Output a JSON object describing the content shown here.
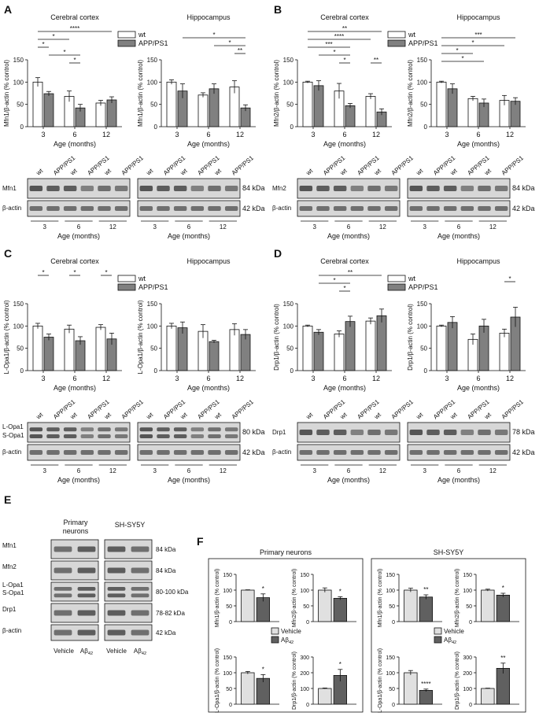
{
  "colors": {
    "wt": "#ffffff",
    "app": "#808080",
    "vehicle": "#e0e0e0",
    "abeta": "#606060",
    "blot_bg": "#d7d7d7",
    "band": "#2a2a2a"
  },
  "common": {
    "xlabel_age": "Age (months)",
    "ages": [
      "3",
      "6",
      "12"
    ],
    "legend_wt": "wt",
    "legend_app": "APP/PS1",
    "legend_vehicle": "Vehicle",
    "legend_abeta": "Aβ42",
    "lane_labels": [
      "wt",
      "APP/PS1",
      "wt",
      "APP/PS1",
      "wt",
      "APP/PS1"
    ],
    "actin": "β-actin",
    "kda_42": "42 kDa"
  },
  "panels": {
    "A": {
      "letter": "A",
      "protein": "Mfn1",
      "kda": "84 kDa"
    },
    "B": {
      "letter": "B",
      "protein": "Mfn2",
      "kda": "84 kDa"
    },
    "C": {
      "letter": "C",
      "protein_top": "L-Opa1",
      "protein_bot": "S-Opa1",
      "kda": "80 kDa"
    },
    "D": {
      "letter": "D",
      "protein": "Drp1",
      "kda": "78 kDa"
    },
    "E": {
      "letter": "E",
      "header_primary": "Primary neurons",
      "header_shsy": "SH-SY5Y",
      "rows": [
        "Mfn1",
        "Mfn2",
        "L-Opa1\nS-Opa1",
        "Drp1",
        "β-actin"
      ],
      "kdas": [
        "84 kDa",
        "84 kDa",
        "80-100 kDa",
        "78-82 kDa",
        "42 kDa"
      ],
      "lanes": [
        "Vehicle",
        "Aβ42",
        "Vehicle",
        "Aβ42"
      ]
    },
    "F": {
      "letter": "F",
      "header_primary": "Primary neurons",
      "header_shsy": "SH-SY5Y"
    }
  },
  "chart_data": [
    {
      "id": "A-cortex",
      "type": "bar",
      "title": "Cerebral cortex",
      "ylabel": "Mfn1/β-actin (% control)",
      "xlabel": "Age (months)",
      "ylim": [
        0,
        150
      ],
      "categories": [
        "3",
        "6",
        "12"
      ],
      "series": [
        {
          "name": "wt",
          "values": [
            100,
            68,
            53
          ],
          "err": [
            10,
            12,
            6
          ]
        },
        {
          "name": "APP/PS1",
          "values": [
            74,
            42,
            60
          ],
          "err": [
            5,
            8,
            7
          ]
        }
      ],
      "sig": [
        {
          "label": "****",
          "from": 0,
          "to": 5,
          "level": 0
        },
        {
          "label": "*",
          "from": 0,
          "to": 2,
          "level": 1
        },
        {
          "label": "*",
          "from": 0,
          "to": 1,
          "level": 2
        },
        {
          "label": "*",
          "from": 1,
          "to": 3,
          "level": 3
        },
        {
          "label": "*",
          "from": 2,
          "to": 3,
          "level": 4
        }
      ]
    },
    {
      "id": "A-hippo",
      "type": "bar",
      "title": "Hippocampus",
      "ylabel": "Mfn1/β-actin (% control)",
      "xlabel": "Age (months)",
      "ylim": [
        0,
        150
      ],
      "categories": [
        "3",
        "6",
        "12"
      ],
      "series": [
        {
          "name": "wt",
          "values": [
            100,
            71,
            89
          ],
          "err": [
            5,
            5,
            14
          ]
        },
        {
          "name": "APP/PS1",
          "values": [
            80,
            85,
            42
          ],
          "err": [
            16,
            11,
            7
          ]
        }
      ],
      "sig": [
        {
          "label": "*",
          "from": 1,
          "to": 5,
          "level": 0
        },
        {
          "label": "*",
          "from": 3,
          "to": 5,
          "level": 1
        },
        {
          "label": "**",
          "from": 4,
          "to": 5,
          "level": 2
        }
      ]
    },
    {
      "id": "B-cortex",
      "type": "bar",
      "title": "Cerebral cortex",
      "ylabel": "Mfn2/β-actin (% control)",
      "xlabel": "Age (months)",
      "ylim": [
        0,
        150
      ],
      "categories": [
        "3",
        "6",
        "12"
      ],
      "series": [
        {
          "name": "wt",
          "values": [
            100,
            80,
            68
          ],
          "err": [
            2,
            17,
            6
          ]
        },
        {
          "name": "APP/PS1",
          "values": [
            92,
            47,
            33
          ],
          "err": [
            11,
            5,
            7
          ]
        }
      ],
      "sig": [
        {
          "label": "**",
          "from": 0,
          "to": 5,
          "level": 0
        },
        {
          "label": "****",
          "from": 0,
          "to": 4,
          "level": 1
        },
        {
          "label": "***",
          "from": 0,
          "to": 3,
          "level": 2
        },
        {
          "label": "*",
          "from": 1,
          "to": 3,
          "level": 3
        },
        {
          "label": "*",
          "from": 2,
          "to": 3,
          "level": 4
        },
        {
          "label": "**",
          "from": 4,
          "to": 5,
          "level": 4
        }
      ]
    },
    {
      "id": "B-hippo",
      "type": "bar",
      "title": "Hippocampus",
      "ylabel": "Mfn2/β-actin (% control)",
      "xlabel": "Age (months)",
      "ylim": [
        0,
        150
      ],
      "categories": [
        "3",
        "6",
        "12"
      ],
      "series": [
        {
          "name": "wt",
          "values": [
            100,
            63,
            59
          ],
          "err": [
            2,
            5,
            11
          ]
        },
        {
          "name": "APP/PS1",
          "values": [
            85,
            53,
            57
          ],
          "err": [
            11,
            9,
            8
          ]
        }
      ],
      "sig": [
        {
          "label": "***",
          "from": 0,
          "to": 5,
          "level": 0
        },
        {
          "label": "*",
          "from": 0,
          "to": 4,
          "level": 1
        },
        {
          "label": "*",
          "from": 0,
          "to": 2,
          "level": 2
        },
        {
          "label": "*",
          "from": 0,
          "to": 3,
          "level": 3
        }
      ]
    },
    {
      "id": "C-cortex",
      "type": "bar",
      "title": "Cerebral cortex",
      "ylabel": "L-Opa1/β-actin (% control)",
      "xlabel": "Age (months)",
      "ylim": [
        0,
        150
      ],
      "categories": [
        "3",
        "6",
        "12"
      ],
      "series": [
        {
          "name": "wt",
          "values": [
            100,
            93,
            97
          ],
          "err": [
            6,
            9,
            6
          ]
        },
        {
          "name": "APP/PS1",
          "values": [
            75,
            67,
            71
          ],
          "err": [
            7,
            9,
            13
          ]
        }
      ],
      "sig": [
        {
          "label": "*",
          "from": 0,
          "to": 1,
          "level": 0
        },
        {
          "label": "*",
          "from": 2,
          "to": 3,
          "level": 0
        },
        {
          "label": "*",
          "from": 4,
          "to": 5,
          "level": 0
        }
      ]
    },
    {
      "id": "C-hippo",
      "type": "bar",
      "title": "Hippocampus",
      "ylabel": "L-Opa1/β-actin (% control)",
      "xlabel": "Age (months)",
      "ylim": [
        0,
        150
      ],
      "categories": [
        "3",
        "6",
        "12"
      ],
      "series": [
        {
          "name": "wt",
          "values": [
            100,
            88,
            92
          ],
          "err": [
            6,
            15,
            13
          ]
        },
        {
          "name": "APP/PS1",
          "values": [
            96,
            65,
            81
          ],
          "err": [
            13,
            3,
            11
          ]
        }
      ],
      "sig": []
    },
    {
      "id": "D-cortex",
      "type": "bar",
      "title": "Cerebral cortex",
      "ylabel": "Drp1/β-actin (% control)",
      "xlabel": "Age (months)",
      "ylim": [
        0,
        150
      ],
      "categories": [
        "3",
        "6",
        "12"
      ],
      "series": [
        {
          "name": "wt",
          "values": [
            100,
            82,
            111
          ],
          "err": [
            2,
            7,
            7
          ]
        },
        {
          "name": "APP/PS1",
          "values": [
            86,
            110,
            123
          ],
          "err": [
            6,
            12,
            15
          ]
        }
      ],
      "sig": [
        {
          "label": "**",
          "from": 1,
          "to": 5,
          "level": 0
        },
        {
          "label": "*",
          "from": 1,
          "to": 3,
          "level": 1
        },
        {
          "label": "*",
          "from": 2,
          "to": 3,
          "level": 2
        }
      ]
    },
    {
      "id": "D-hippo",
      "type": "bar",
      "title": "Hippocampus",
      "ylabel": "Drp1/β-actin (% control)",
      "xlabel": "Age (months)",
      "ylim": [
        0,
        150
      ],
      "categories": [
        "3",
        "6",
        "12"
      ],
      "series": [
        {
          "name": "wt",
          "values": [
            100,
            70,
            84
          ],
          "err": [
            2,
            12,
            9
          ]
        },
        {
          "name": "APP/PS1",
          "values": [
            108,
            100,
            120
          ],
          "err": [
            13,
            15,
            22
          ]
        }
      ],
      "sig": [
        {
          "label": "*",
          "from": 4,
          "to": 5,
          "level": 0
        }
      ]
    },
    {
      "id": "F-pn-mfn1",
      "type": "bar",
      "ylabel": "Mfn1/β-actin (% control)",
      "ylim": [
        0,
        150
      ],
      "categories": [
        "Vehicle",
        "Aβ42"
      ],
      "values": [
        100,
        76
      ],
      "err": [
        1,
        12
      ],
      "sig": "*"
    },
    {
      "id": "F-pn-mfn2",
      "type": "bar",
      "ylabel": "Mfn2/β-actin (% control)",
      "ylim": [
        0,
        150
      ],
      "categories": [
        "Vehicle",
        "Aβ42"
      ],
      "values": [
        100,
        74
      ],
      "err": [
        7,
        5
      ],
      "sig": "*"
    },
    {
      "id": "F-sh-mfn1",
      "type": "bar",
      "ylabel": "Mfn1/β-actin (% control)",
      "ylim": [
        0,
        150
      ],
      "categories": [
        "Vehicle",
        "Aβ42"
      ],
      "values": [
        100,
        78
      ],
      "err": [
        6,
        7
      ],
      "sig": "**"
    },
    {
      "id": "F-sh-mfn2",
      "type": "bar",
      "ylabel": "Mfn2/β-actin (% control)",
      "ylim": [
        0,
        150
      ],
      "categories": [
        "Vehicle",
        "Aβ42"
      ],
      "values": [
        100,
        84
      ],
      "err": [
        3,
        6
      ],
      "sig": "*"
    },
    {
      "id": "F-pn-opa1",
      "type": "bar",
      "ylabel": "L-Opa1/β-actin (% control)",
      "ylim": [
        0,
        150
      ],
      "categories": [
        "Vehicle",
        "Aβ42"
      ],
      "values": [
        100,
        82
      ],
      "err": [
        4,
        12
      ],
      "sig": "*"
    },
    {
      "id": "F-pn-drp1",
      "type": "bar",
      "ylabel": "Drp1/β-actin (% control)",
      "ylim": [
        0,
        300
      ],
      "categories": [
        "Vehicle",
        "Aβ42"
      ],
      "values": [
        100,
        183
      ],
      "err": [
        3,
        38
      ],
      "sig": "*"
    },
    {
      "id": "F-sh-opa1",
      "type": "bar",
      "ylabel": "L-Opa1/β-actin (% control)",
      "ylim": [
        0,
        150
      ],
      "categories": [
        "Vehicle",
        "Aβ42"
      ],
      "values": [
        100,
        44
      ],
      "err": [
        7,
        4
      ],
      "sig": "****"
    },
    {
      "id": "F-sh-drp1",
      "type": "bar",
      "ylabel": "Drp1/β-actin (% control)",
      "ylim": [
        0,
        300
      ],
      "categories": [
        "Vehicle",
        "Aβ42"
      ],
      "values": [
        100,
        228
      ],
      "err": [
        2,
        33
      ],
      "sig": "**"
    }
  ]
}
